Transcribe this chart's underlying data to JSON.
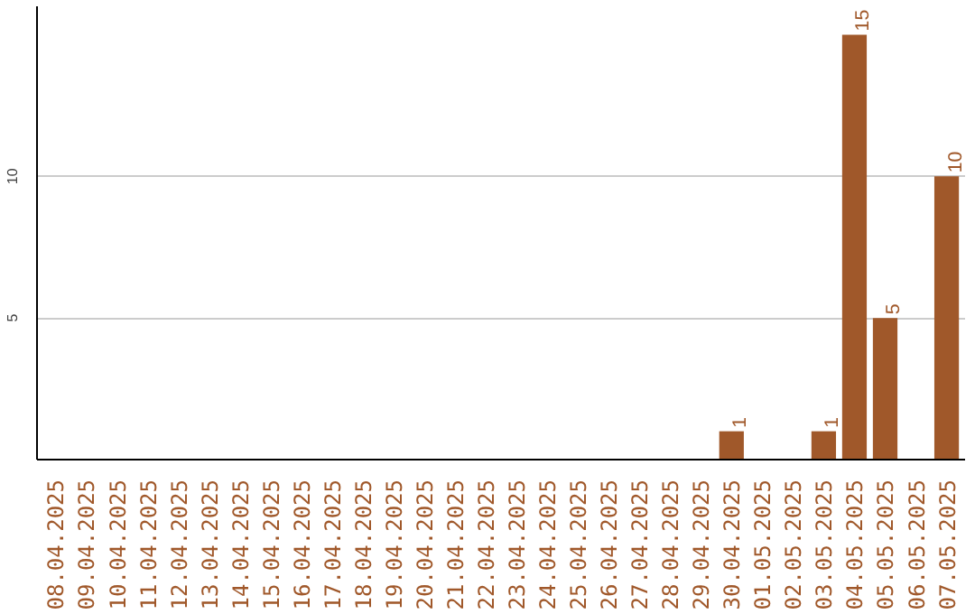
{
  "chart_data": {
    "type": "bar",
    "categories": [
      "08.04.2025",
      "09.04.2025",
      "10.04.2025",
      "11.04.2025",
      "12.04.2025",
      "13.04.2025",
      "14.04.2025",
      "15.04.2025",
      "16.04.2025",
      "17.04.2025",
      "18.04.2025",
      "19.04.2025",
      "20.04.2025",
      "21.04.2025",
      "22.04.2025",
      "23.04.2025",
      "24.04.2025",
      "25.04.2025",
      "26.04.2025",
      "27.04.2025",
      "28.04.2025",
      "29.04.2025",
      "30.04.2025",
      "01.05.2025",
      "02.05.2025",
      "03.05.2025",
      "04.05.2025",
      "05.05.2025",
      "06.05.2025",
      "07.05.2025"
    ],
    "values": [
      0,
      0,
      0,
      0,
      0,
      0,
      0,
      0,
      0,
      0,
      0,
      0,
      0,
      0,
      0,
      0,
      0,
      0,
      0,
      0,
      0,
      0,
      1,
      0,
      0,
      1,
      15,
      5,
      0,
      10
    ],
    "value_labels": [
      null,
      null,
      null,
      null,
      null,
      null,
      null,
      null,
      null,
      null,
      null,
      null,
      null,
      null,
      null,
      null,
      null,
      null,
      null,
      null,
      null,
      null,
      "1",
      null,
      null,
      "1",
      "15",
      "5",
      null,
      "10"
    ],
    "color": "#a0582a",
    "ylim": [
      0,
      16
    ],
    "yticks": [
      5,
      10
    ],
    "grid": "y"
  }
}
